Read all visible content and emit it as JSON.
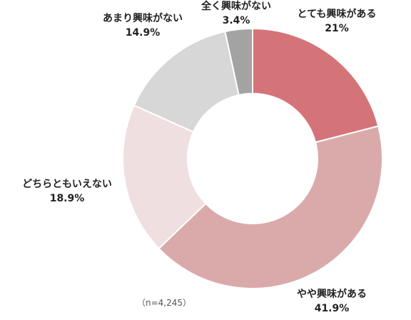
{
  "chart_data": {
    "type": "pie",
    "variant": "donut",
    "note": "（n=4,245）",
    "slices": [
      {
        "label": "とても興味がある",
        "value": 21,
        "value_label": "21%",
        "color": "#d47479"
      },
      {
        "label": "やや興味がある",
        "value": 41.9,
        "value_label": "41.9%",
        "color": "#daaaab"
      },
      {
        "label": "どちらともいえない",
        "value": 18.9,
        "value_label": "18.9%",
        "color": "#f0dfe0"
      },
      {
        "label": "あまり興味がない",
        "value": 14.9,
        "value_label": "14.9%",
        "color": "#d7d7d7"
      },
      {
        "label": "全く興味がない",
        "value": 3.4,
        "value_label": "3.4%",
        "color": "#a3a3a3"
      }
    ]
  }
}
